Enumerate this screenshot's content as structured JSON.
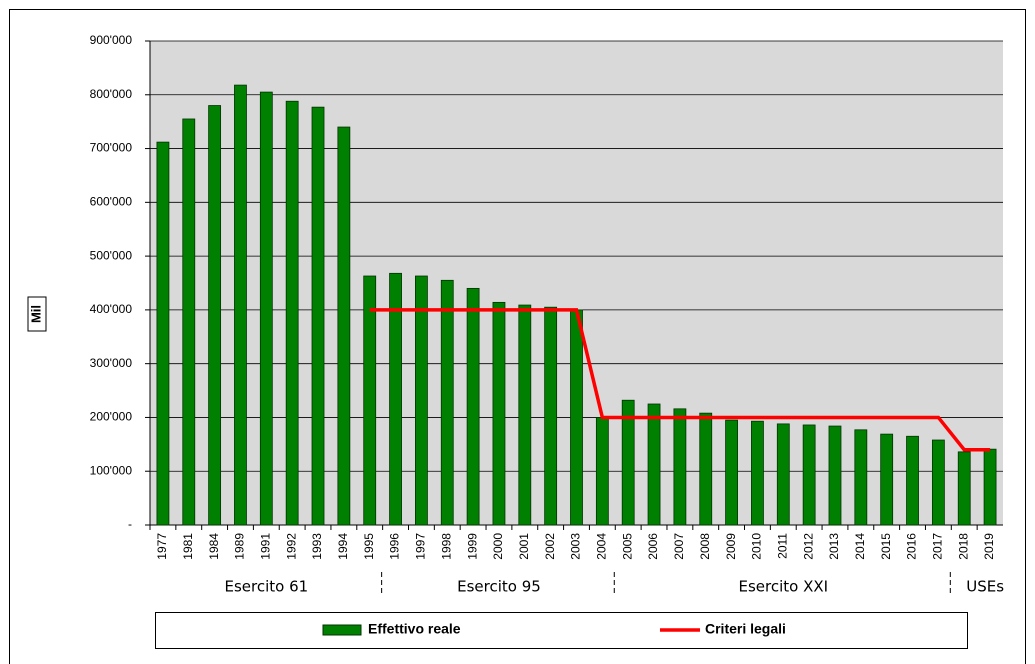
{
  "chart_data": {
    "type": "bar",
    "y_label": "Mil",
    "categories": [
      "1977",
      "1981",
      "1984",
      "1989",
      "1991",
      "1992",
      "1993",
      "1994",
      "1995",
      "1996",
      "1997",
      "1998",
      "1999",
      "2000",
      "2001",
      "2002",
      "2003",
      "2004",
      "2005",
      "2006",
      "2007",
      "2008",
      "2009",
      "2010",
      "2011",
      "2012",
      "2013",
      "2014",
      "2015",
      "2016",
      "2017",
      "2018",
      "2019"
    ],
    "series": [
      {
        "name": "Effettivo reale",
        "type": "bar",
        "color": "#008000",
        "values": [
          712000,
          755000,
          780000,
          818000,
          805000,
          788000,
          777000,
          740000,
          463000,
          468000,
          463000,
          455000,
          440000,
          414000,
          409000,
          405000,
          400000,
          200000,
          232000,
          225000,
          216000,
          208000,
          195000,
          193000,
          188000,
          186000,
          184000,
          177000,
          169000,
          165000,
          158000,
          136000,
          141000
        ]
      },
      {
        "name": "Criteri legali",
        "type": "line",
        "color": "#ff0000",
        "values": [
          null,
          null,
          null,
          null,
          null,
          null,
          null,
          null,
          400000,
          400000,
          400000,
          400000,
          400000,
          400000,
          400000,
          400000,
          400000,
          200000,
          200000,
          200000,
          200000,
          200000,
          200000,
          200000,
          200000,
          200000,
          200000,
          200000,
          200000,
          200000,
          200000,
          140000,
          140000
        ]
      }
    ],
    "groups": [
      "Esercito 61",
      "Esercito 95",
      "Esercito XXI",
      "USEs"
    ],
    "ylim": [
      0,
      900000
    ],
    "yticks": [
      {
        "value": 0,
        "label": "-"
      },
      {
        "value": 100000,
        "label": "100'000"
      },
      {
        "value": 200000,
        "label": "200'000"
      },
      {
        "value": 300000,
        "label": "300'000"
      },
      {
        "value": 400000,
        "label": "400'000"
      },
      {
        "value": 500000,
        "label": "500'000"
      },
      {
        "value": 600000,
        "label": "600'000"
      },
      {
        "value": 700000,
        "label": "700'000"
      },
      {
        "value": 800000,
        "label": "800'000"
      },
      {
        "value": 900000,
        "label": "900'000"
      }
    ],
    "grid": true
  }
}
